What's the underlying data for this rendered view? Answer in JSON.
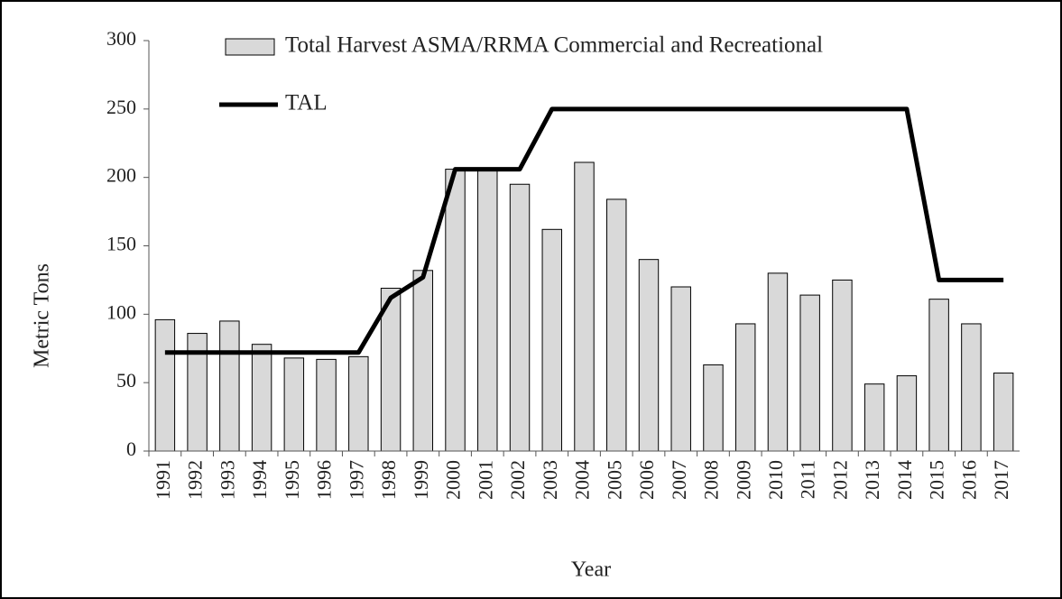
{
  "chart_data": {
    "type": "bar",
    "x_label": "Year",
    "y_label": "Metric Tons",
    "categories": [
      "1991",
      "1992",
      "1993",
      "1994",
      "1995",
      "1996",
      "1997",
      "1998",
      "1999",
      "2000",
      "2001",
      "2002",
      "2003",
      "2004",
      "2005",
      "2006",
      "2007",
      "2008",
      "2009",
      "2010",
      "2011",
      "2012",
      "2013",
      "2014",
      "2015",
      "2016",
      "2017"
    ],
    "series": [
      {
        "name": "Total Harvest ASMA/RRMA Commercial and Recreational",
        "type": "bar",
        "color": "#d9d9d9",
        "values": [
          96,
          86,
          95,
          78,
          68,
          67,
          69,
          119,
          132,
          206,
          206,
          195,
          162,
          211,
          184,
          140,
          120,
          63,
          93,
          130,
          114,
          125,
          49,
          55,
          111,
          93,
          57
        ]
      },
      {
        "name": "TAL",
        "type": "line",
        "color": "#000000",
        "values": [
          72,
          72,
          72,
          72,
          72,
          72,
          72,
          112,
          127,
          206,
          206,
          206,
          250,
          250,
          250,
          250,
          250,
          250,
          250,
          250,
          250,
          250,
          250,
          250,
          125,
          125,
          125
        ]
      }
    ],
    "ylim": [
      0,
      300
    ],
    "yticks": [
      0,
      50,
      100,
      150,
      200,
      250,
      300
    ],
    "grid": false,
    "legend": "top"
  }
}
